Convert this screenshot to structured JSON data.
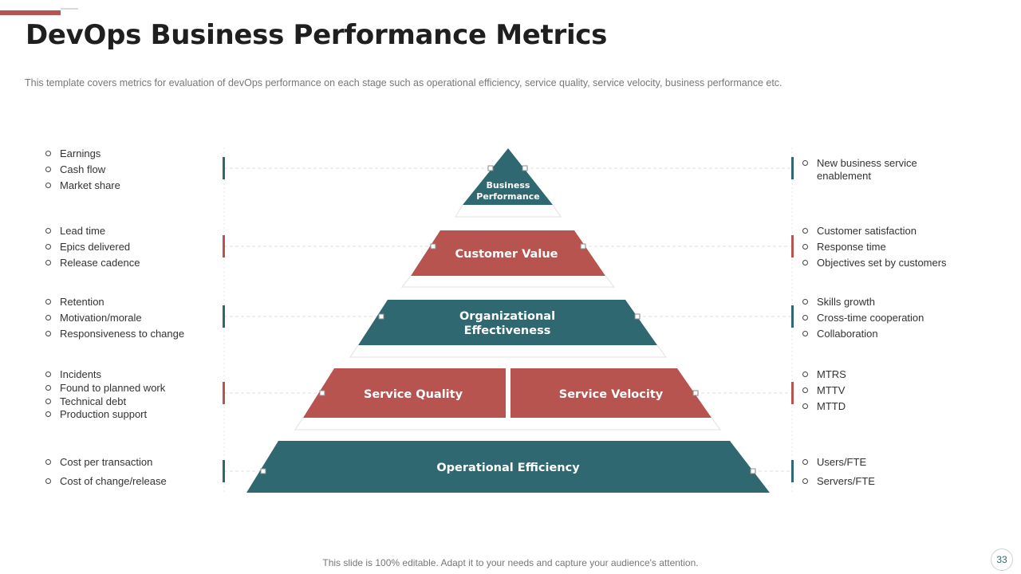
{
  "title": "DevOps Business Performance Metrics",
  "subtitle": "This template covers metrics for evaluation of devOps performance on each stage such as operational efficiency, service quality, service velocity, business performance etc.",
  "colors": {
    "teal": "#2f6870",
    "red": "#b85450",
    "connector": "#d0d0d0"
  },
  "pyramid": {
    "business_performance": {
      "line1": "Business",
      "line2": "Performance"
    },
    "customer_value": "Customer Value",
    "organizational_effectiveness": {
      "line1": "Organizational",
      "line2": "Effectiveness"
    },
    "service_quality": "Service Quality",
    "service_velocity": "Service Velocity",
    "operational_efficiency": "Operational Efficiency"
  },
  "left_lists": [
    [
      "Earnings",
      "Cash flow",
      "Market share"
    ],
    [
      "Lead time",
      "Epics delivered",
      "Release cadence"
    ],
    [
      "Retention",
      "Motivation/morale",
      "Responsiveness to change"
    ],
    [
      "Incidents",
      "Found to planned work",
      "Technical debt",
      "Production support"
    ],
    [
      "Cost per transaction",
      "Cost of change/release"
    ]
  ],
  "right_lists": [
    [
      "New business service enablement"
    ],
    [
      "Customer satisfaction",
      "Response time",
      "Objectives set by customers"
    ],
    [
      "Skills growth",
      "Cross-time cooperation",
      "Collaboration"
    ],
    [
      "MTRS",
      "MTTV",
      "MTTD"
    ],
    [
      "Users/FTE",
      "Servers/FTE"
    ]
  ],
  "footer": "This slide is 100% editable. Adapt it to your needs and capture your audience's attention.",
  "page_number": "33"
}
